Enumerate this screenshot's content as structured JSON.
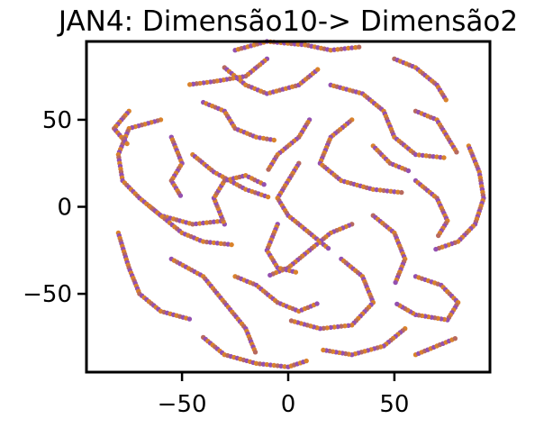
{
  "chart_data": {
    "type": "scatter",
    "title": "JAN4: Dimensão10-> Dimensão2",
    "xlabel": "",
    "ylabel": "",
    "xlim": [
      -95,
      95
    ],
    "ylim": [
      -95,
      95
    ],
    "xticks": [
      -50,
      0,
      50
    ],
    "yticks": [
      -50,
      0,
      50
    ],
    "xtick_labels": [
      "−50",
      "0",
      "50"
    ],
    "ytick_labels": [
      "−50",
      "0",
      "50"
    ],
    "grid": false,
    "legend": "none",
    "colors": [
      "#d9822b",
      "#9450b0",
      "#b8695e"
    ],
    "series": [
      {
        "description": "t-SNE style embedding forming many worm-like curves; points colored orange and purple",
        "curves": [
          [
            [
              -25,
              90
            ],
            [
              -10,
              95
            ],
            [
              8,
              93
            ],
            [
              20,
              90
            ],
            [
              35,
              92
            ]
          ],
          [
            [
              -30,
              80
            ],
            [
              -20,
              70
            ],
            [
              -10,
              65
            ],
            [
              5,
              70
            ],
            [
              15,
              80
            ]
          ],
          [
            [
              -60,
              50
            ],
            [
              -75,
              45
            ],
            [
              -80,
              30
            ],
            [
              -78,
              15
            ],
            [
              -70,
              5
            ],
            [
              -60,
              -5
            ],
            [
              -45,
              -10
            ],
            [
              -30,
              -8
            ]
          ],
          [
            [
              -55,
              40
            ],
            [
              -50,
              25
            ],
            [
              -55,
              15
            ],
            [
              -50,
              5
            ]
          ],
          [
            [
              -40,
              60
            ],
            [
              -30,
              55
            ],
            [
              -25,
              45
            ],
            [
              -15,
              40
            ],
            [
              -5,
              38
            ]
          ],
          [
            [
              -45,
              30
            ],
            [
              -35,
              20
            ],
            [
              -20,
              10
            ],
            [
              -8,
              5
            ]
          ],
          [
            [
              -65,
              0
            ],
            [
              -50,
              -15
            ],
            [
              -40,
              -20
            ],
            [
              -25,
              -22
            ]
          ],
          [
            [
              -80,
              -15
            ],
            [
              -75,
              -35
            ],
            [
              -70,
              -50
            ],
            [
              -60,
              -60
            ],
            [
              -45,
              -65
            ]
          ],
          [
            [
              -55,
              -30
            ],
            [
              -40,
              -40
            ],
            [
              -30,
              -55
            ],
            [
              -20,
              -70
            ],
            [
              -15,
              -85
            ]
          ],
          [
            [
              -40,
              -75
            ],
            [
              -30,
              -85
            ],
            [
              -15,
              -90
            ],
            [
              0,
              -92
            ],
            [
              10,
              -88
            ]
          ],
          [
            [
              -25,
              -40
            ],
            [
              -15,
              -45
            ],
            [
              -5,
              -55
            ],
            [
              5,
              -60
            ],
            [
              15,
              -55
            ]
          ],
          [
            [
              -30,
              -10
            ],
            [
              -35,
              5
            ],
            [
              -30,
              15
            ],
            [
              -20,
              18
            ],
            [
              -10,
              12
            ]
          ],
          [
            [
              20,
              70
            ],
            [
              35,
              65
            ],
            [
              45,
              55
            ],
            [
              50,
              40
            ],
            [
              60,
              30
            ],
            [
              75,
              28
            ]
          ],
          [
            [
              30,
              50
            ],
            [
              20,
              40
            ],
            [
              15,
              25
            ],
            [
              25,
              15
            ],
            [
              40,
              10
            ],
            [
              55,
              8
            ]
          ],
          [
            [
              60,
              55
            ],
            [
              70,
              50
            ],
            [
              75,
              40
            ],
            [
              80,
              30
            ]
          ],
          [
            [
              50,
              85
            ],
            [
              60,
              80
            ],
            [
              70,
              70
            ],
            [
              75,
              60
            ]
          ],
          [
            [
              85,
              35
            ],
            [
              90,
              20
            ],
            [
              92,
              5
            ],
            [
              88,
              -10
            ],
            [
              80,
              -20
            ],
            [
              68,
              -25
            ]
          ],
          [
            [
              60,
              15
            ],
            [
              70,
              5
            ],
            [
              75,
              -8
            ],
            [
              70,
              -18
            ]
          ],
          [
            [
              40,
              -5
            ],
            [
              50,
              -15
            ],
            [
              55,
              -30
            ],
            [
              50,
              -45
            ]
          ],
          [
            [
              60,
              -40
            ],
            [
              72,
              -45
            ],
            [
              80,
              -55
            ],
            [
              75,
              -65
            ],
            [
              60,
              -62
            ],
            [
              50,
              -55
            ]
          ],
          [
            [
              25,
              -30
            ],
            [
              35,
              -40
            ],
            [
              40,
              -55
            ],
            [
              30,
              -68
            ],
            [
              15,
              -70
            ],
            [
              0,
              -65
            ]
          ],
          [
            [
              5,
              25
            ],
            [
              0,
              15
            ],
            [
              -5,
              5
            ],
            [
              0,
              -5
            ],
            [
              10,
              -15
            ],
            [
              20,
              -25
            ]
          ],
          [
            [
              10,
              50
            ],
            [
              5,
              40
            ],
            [
              -5,
              30
            ],
            [
              -10,
              20
            ]
          ],
          [
            [
              30,
              -10
            ],
            [
              20,
              -15
            ],
            [
              10,
              -25
            ],
            [
              0,
              -35
            ],
            [
              -10,
              -40
            ]
          ],
          [
            [
              -5,
              -10
            ],
            [
              -10,
              -25
            ],
            [
              -5,
              -35
            ],
            [
              5,
              -38
            ]
          ],
          [
            [
              55,
              -70
            ],
            [
              45,
              -80
            ],
            [
              30,
              -85
            ],
            [
              15,
              -82
            ]
          ],
          [
            [
              -75,
              55
            ],
            [
              -82,
              45
            ],
            [
              -75,
              35
            ]
          ],
          [
            [
              40,
              35
            ],
            [
              48,
              25
            ],
            [
              58,
              20
            ]
          ],
          [
            [
              -10,
              85
            ],
            [
              -20,
              75
            ],
            [
              -35,
              72
            ],
            [
              -48,
              70
            ]
          ],
          [
            [
              60,
              -85
            ],
            [
              70,
              -80
            ],
            [
              80,
              -75
            ]
          ]
        ]
      }
    ]
  }
}
